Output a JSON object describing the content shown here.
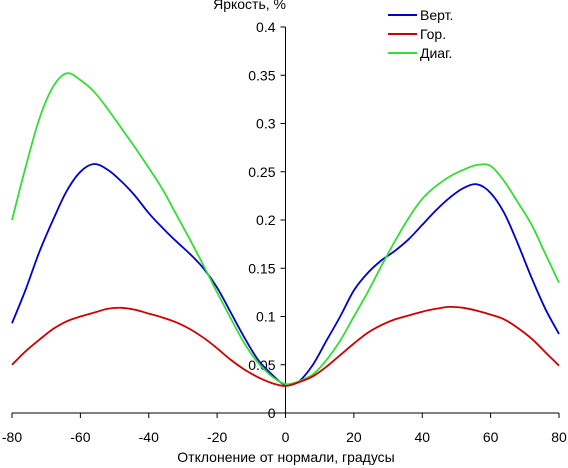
{
  "chart_data": {
    "type": "line",
    "title": "",
    "xlabel": "Отклонение от нормали, градусы",
    "ylabel": "Яркость, %",
    "xlim": [
      -80,
      80
    ],
    "ylim": [
      0,
      0.4
    ],
    "x_ticks": [
      "-80",
      "-60",
      "-40",
      "-20",
      "0",
      "20",
      "40",
      "60",
      "80"
    ],
    "y_ticks": [
      "0",
      "0.05",
      "0.1",
      "0.15",
      "0.2",
      "0.25",
      "0.3",
      "0.35",
      "0.4"
    ],
    "grid": false,
    "legend_position": "top-right",
    "series": [
      {
        "name": "Верт.",
        "color": "#0000cc",
        "x": [
          -80,
          -76,
          -72,
          -68,
          -64,
          -60,
          -56,
          -52,
          -48,
          -44,
          -40,
          -36,
          -32,
          -28,
          -24,
          -20,
          -16,
          -12,
          -8,
          -4,
          0,
          4,
          8,
          12,
          16,
          20,
          24,
          28,
          32,
          36,
          40,
          44,
          48,
          52,
          56,
          60,
          64,
          68,
          72,
          76,
          80
        ],
        "y": [
          0.093,
          0.128,
          0.167,
          0.2,
          0.23,
          0.25,
          0.258,
          0.252,
          0.24,
          0.225,
          0.207,
          0.192,
          0.178,
          0.165,
          0.15,
          0.13,
          0.104,
          0.078,
          0.055,
          0.04,
          0.029,
          0.033,
          0.05,
          0.075,
          0.1,
          0.127,
          0.145,
          0.158,
          0.168,
          0.18,
          0.195,
          0.21,
          0.223,
          0.233,
          0.237,
          0.228,
          0.207,
          0.175,
          0.14,
          0.108,
          0.082
        ]
      },
      {
        "name": "Гор.",
        "color": "#cc0000",
        "x": [
          -80,
          -76,
          -72,
          -68,
          -64,
          -60,
          -56,
          -52,
          -48,
          -44,
          -40,
          -36,
          -32,
          -28,
          -24,
          -20,
          -16,
          -12,
          -8,
          -4,
          0,
          4,
          8,
          12,
          16,
          20,
          24,
          28,
          32,
          36,
          40,
          44,
          48,
          52,
          56,
          60,
          64,
          68,
          72,
          76,
          80
        ],
        "y": [
          0.05,
          0.064,
          0.076,
          0.087,
          0.095,
          0.1,
          0.104,
          0.108,
          0.109,
          0.107,
          0.103,
          0.099,
          0.094,
          0.087,
          0.078,
          0.067,
          0.055,
          0.045,
          0.037,
          0.031,
          0.028,
          0.032,
          0.038,
          0.048,
          0.06,
          0.072,
          0.083,
          0.091,
          0.097,
          0.101,
          0.105,
          0.108,
          0.11,
          0.109,
          0.106,
          0.102,
          0.097,
          0.088,
          0.077,
          0.063,
          0.049
        ]
      },
      {
        "name": "Диаг.",
        "color": "#33dd33",
        "x": [
          -80,
          -76,
          -72,
          -68,
          -64,
          -60,
          -56,
          -52,
          -48,
          -44,
          -40,
          -36,
          -32,
          -28,
          -24,
          -20,
          -16,
          -12,
          -8,
          -4,
          0,
          4,
          8,
          12,
          16,
          20,
          24,
          28,
          32,
          36,
          40,
          44,
          48,
          52,
          56,
          60,
          64,
          68,
          72,
          76,
          80
        ],
        "y": [
          0.2,
          0.255,
          0.305,
          0.338,
          0.352,
          0.345,
          0.333,
          0.315,
          0.295,
          0.275,
          0.254,
          0.232,
          0.206,
          0.18,
          0.153,
          0.125,
          0.098,
          0.072,
          0.052,
          0.038,
          0.03,
          0.033,
          0.04,
          0.055,
          0.075,
          0.1,
          0.125,
          0.152,
          0.178,
          0.202,
          0.222,
          0.235,
          0.245,
          0.252,
          0.257,
          0.256,
          0.24,
          0.218,
          0.195,
          0.165,
          0.135
        ]
      }
    ]
  }
}
